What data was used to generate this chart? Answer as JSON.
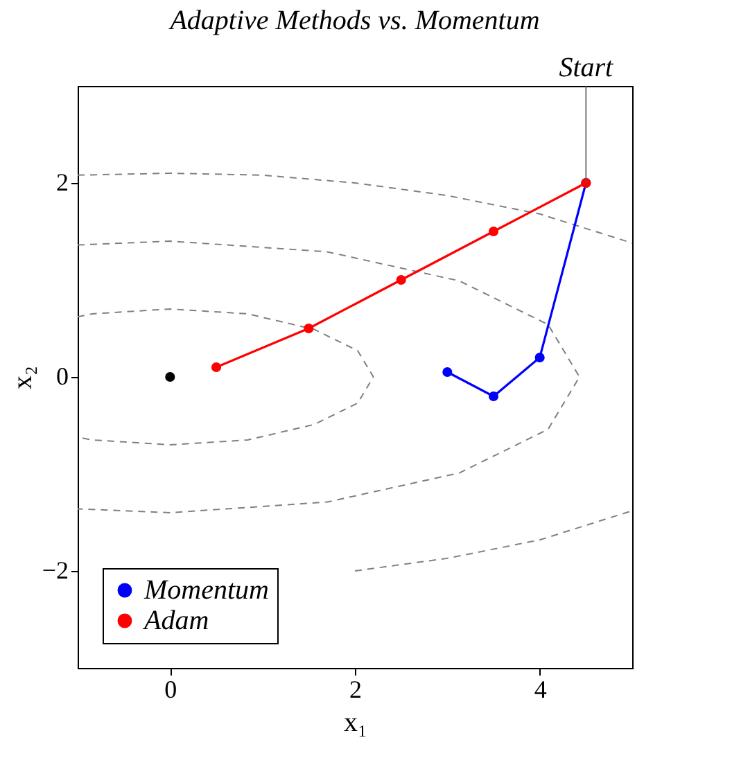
{
  "chart_data": {
    "type": "line",
    "title": "Adaptive Methods vs. Momentum",
    "xlabel": "x₁",
    "ylabel": "x₂",
    "xlim": [
      -1,
      5
    ],
    "ylim": [
      -3,
      3
    ],
    "xticks": [
      0,
      2,
      4
    ],
    "yticks": [
      -2,
      0,
      2
    ],
    "grid": false,
    "legend": "bottom left",
    "marker": "circle",
    "line_style": "solid",
    "series": [
      {
        "type": "line",
        "color": "#808080",
        "line_style": "dashed",
        "marker": "none",
        "x": [
          -1,
          -0.84,
          0,
          0.84,
          1.56,
          2.03,
          2.2,
          2.03,
          1.56,
          0.84,
          0,
          -0.84,
          -1
        ],
        "values": [
          0.62,
          0.65,
          0.7,
          0.65,
          0.49,
          0.27,
          0,
          -0.27,
          -0.49,
          -0.65,
          -0.7,
          -0.65,
          -0.62
        ]
      },
      {
        "type": "line",
        "color": "#808080",
        "line_style": "dashed",
        "marker": "none",
        "x": [
          -1,
          0,
          1.7,
          3.13,
          4.09,
          4.43,
          4.09,
          3.13,
          1.7,
          0,
          -1
        ],
        "values": [
          1.36,
          1.4,
          1.29,
          0.99,
          0.54,
          0,
          -0.54,
          -0.99,
          -1.29,
          -1.4,
          -1.36
        ]
      },
      {
        "type": "line",
        "color": "#808080",
        "line_style": "dashed",
        "marker": "none",
        "x": [
          -1,
          0,
          1,
          2,
          3,
          4,
          5
        ],
        "values": [
          2.08,
          2.1,
          2.08,
          2.0,
          1.87,
          1.68,
          1.38
        ]
      },
      {
        "type": "line",
        "color": "#808080",
        "line_style": "dashed",
        "marker": "none",
        "x": [
          2,
          3,
          4,
          5
        ],
        "values": [
          -2.0,
          -1.87,
          -1.68,
          -1.38
        ]
      },
      {
        "type": "scatter",
        "color": "#000000",
        "x": [
          0
        ],
        "values": [
          0
        ]
      },
      {
        "name": "Momentum",
        "color": "#0000ff",
        "x": [
          4.5,
          4,
          3.5,
          3
        ],
        "values": [
          2,
          0.2,
          -0.2,
          0.05
        ]
      },
      {
        "name": "Adam",
        "color": "#ff0000",
        "x": [
          4.5,
          3.5,
          2.5,
          1.5,
          0.5
        ],
        "values": [
          2,
          1.5,
          1,
          0.5,
          0.1
        ]
      }
    ],
    "annotations": [
      {
        "text": "Start",
        "x": 4.5,
        "y": 2
      }
    ]
  }
}
